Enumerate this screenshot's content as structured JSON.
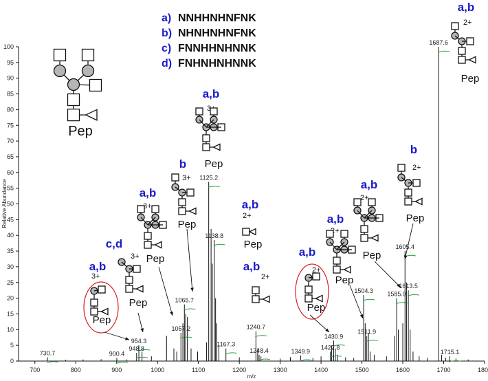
{
  "chart_data": {
    "type": "bar",
    "xlabel": "m/z",
    "ylabel": "Relative Abundance",
    "xlim": [
      660,
      1800
    ],
    "ylim": [
      0,
      100
    ],
    "xticks": [
      700,
      800,
      900,
      1000,
      1100,
      1200,
      1300,
      1400,
      1500,
      1600,
      1700,
      1800
    ],
    "yticks": [
      0,
      5,
      10,
      15,
      20,
      25,
      30,
      35,
      40,
      45,
      50,
      55,
      60,
      65,
      70,
      75,
      80,
      85,
      90,
      95,
      100
    ],
    "peaks": [
      {
        "mz": 730.7,
        "intensity": 1.2,
        "label": "730.7"
      },
      {
        "mz": 900.4,
        "intensity": 1.0,
        "label": "900.4"
      },
      {
        "mz": 948.8,
        "intensity": 2.6,
        "label": "948.8"
      },
      {
        "mz": 954.3,
        "intensity": 5.0,
        "label": "954.3"
      },
      {
        "mz": 1057.2,
        "intensity": 9.0,
        "label": "1057.2"
      },
      {
        "mz": 1065.7,
        "intensity": 18.0,
        "label": "1065.7"
      },
      {
        "mz": 1125.2,
        "intensity": 57.0,
        "label": "1125.2"
      },
      {
        "mz": 1138.8,
        "intensity": 38.5,
        "label": "1138.8"
      },
      {
        "mz": 1167.3,
        "intensity": 4.0,
        "label": "1167.3"
      },
      {
        "mz": 1240.7,
        "intensity": 9.5,
        "label": "1240.7"
      },
      {
        "mz": 1248.4,
        "intensity": 2.0,
        "label": "1248.4"
      },
      {
        "mz": 1349.9,
        "intensity": 1.8,
        "label": "1349.9"
      },
      {
        "mz": 1422.8,
        "intensity": 3.0,
        "label": "1422.8"
      },
      {
        "mz": 1430.9,
        "intensity": 6.5,
        "label": "1430.9"
      },
      {
        "mz": 1504.3,
        "intensity": 21.0,
        "label": "1504.3"
      },
      {
        "mz": 1511.9,
        "intensity": 8.0,
        "label": "1511.9"
      },
      {
        "mz": 1585.0,
        "intensity": 20.0,
        "label": "1585.0"
      },
      {
        "mz": 1605.4,
        "intensity": 35.0,
        "label": "1605.4"
      },
      {
        "mz": 1613.5,
        "intensity": 22.5,
        "label": "1613.5"
      },
      {
        "mz": 1687.6,
        "intensity": 100.0,
        "label": "1687.6"
      },
      {
        "mz": 1715.1,
        "intensity": 1.5,
        "label": "1715.1"
      }
    ],
    "minor_peaks": [
      {
        "mz": 775,
        "intensity": 0.4
      },
      {
        "mz": 818,
        "intensity": 0.5
      },
      {
        "mz": 862,
        "intensity": 0.6
      },
      {
        "mz": 925,
        "intensity": 0.5
      },
      {
        "mz": 962,
        "intensity": 3.0
      },
      {
        "mz": 985,
        "intensity": 1.5
      },
      {
        "mz": 1022,
        "intensity": 8.0
      },
      {
        "mz": 1040,
        "intensity": 4.0
      },
      {
        "mz": 1047,
        "intensity": 3.0
      },
      {
        "mz": 1062,
        "intensity": 12.0
      },
      {
        "mz": 1069,
        "intensity": 15.0
      },
      {
        "mz": 1073,
        "intensity": 14.0
      },
      {
        "mz": 1082,
        "intensity": 4.0
      },
      {
        "mz": 1098,
        "intensity": 3.0
      },
      {
        "mz": 1120,
        "intensity": 6.0
      },
      {
        "mz": 1131,
        "intensity": 42.0
      },
      {
        "mz": 1134,
        "intensity": 31.0
      },
      {
        "mz": 1142,
        "intensity": 20.0
      },
      {
        "mz": 1145,
        "intensity": 12.0
      },
      {
        "mz": 1150,
        "intensity": 5.0
      },
      {
        "mz": 1200,
        "intensity": 1.2
      },
      {
        "mz": 1245,
        "intensity": 4.0
      },
      {
        "mz": 1253,
        "intensity": 1.5
      },
      {
        "mz": 1300,
        "intensity": 0.8
      },
      {
        "mz": 1325,
        "intensity": 1.2
      },
      {
        "mz": 1380,
        "intensity": 1.0
      },
      {
        "mz": 1400,
        "intensity": 1.5
      },
      {
        "mz": 1426,
        "intensity": 5.0
      },
      {
        "mz": 1435,
        "intensity": 4.0
      },
      {
        "mz": 1440,
        "intensity": 2.0
      },
      {
        "mz": 1460,
        "intensity": 1.2
      },
      {
        "mz": 1480,
        "intensity": 1.0
      },
      {
        "mz": 1508,
        "intensity": 12.0
      },
      {
        "mz": 1516,
        "intensity": 9.0
      },
      {
        "mz": 1520,
        "intensity": 3.0
      },
      {
        "mz": 1530,
        "intensity": 2.0
      },
      {
        "mz": 1560,
        "intensity": 1.5
      },
      {
        "mz": 1580,
        "intensity": 8.0
      },
      {
        "mz": 1589,
        "intensity": 10.0
      },
      {
        "mz": 1600,
        "intensity": 12.0
      },
      {
        "mz": 1609,
        "intensity": 25.0
      },
      {
        "mz": 1618,
        "intensity": 10.0
      },
      {
        "mz": 1625,
        "intensity": 3.0
      },
      {
        "mz": 1640,
        "intensity": 1.5
      },
      {
        "mz": 1660,
        "intensity": 1.0
      },
      {
        "mz": 1695,
        "intensity": 2.0
      },
      {
        "mz": 1705,
        "intensity": 1.0
      },
      {
        "mz": 1730,
        "intensity": 0.8
      },
      {
        "mz": 1760,
        "intensity": 0.5
      }
    ],
    "legend": [
      {
        "key": "a)",
        "sequence": "NNHHNHNFNK"
      },
      {
        "key": "b)",
        "sequence": "NHNHNHNFNK"
      },
      {
        "key": "c)",
        "sequence": "FNNHHNHNNK"
      },
      {
        "key": "d)",
        "sequence": "FNHNHNHNNK"
      }
    ],
    "annotations": [
      {
        "label": "a,b",
        "charge": "3+",
        "peptide": "Pep"
      },
      {
        "label": "c,d",
        "charge": "3+",
        "peptide": "Pep"
      },
      {
        "label": "a,b",
        "charge": "3+",
        "peptide": "Pep"
      },
      {
        "label": "b",
        "charge": "3+",
        "peptide": "Pep"
      },
      {
        "label": "a,b",
        "charge": "3+",
        "peptide": "Pep"
      },
      {
        "label": "a,b",
        "charge": "2+",
        "peptide": "Pep"
      },
      {
        "label": "a,b",
        "charge": "2+",
        "peptide": ""
      },
      {
        "label": "a,b",
        "charge": "2+",
        "peptide": "Pep"
      },
      {
        "label": "a,b",
        "charge": "2+",
        "peptide": "Pep"
      },
      {
        "label": "a,b",
        "charge": "2+",
        "peptide": "Pep"
      },
      {
        "label": "b",
        "charge": "2+",
        "peptide": "Pep"
      },
      {
        "label": "a,b",
        "charge": "2+",
        "peptide": "Pep"
      }
    ],
    "main_glycan_peptide": "Pep",
    "colors": {
      "annotation": "#1a1acc",
      "highlight": "#d42020",
      "monoisotopic_marker": "#2aa03a",
      "galactose_fill": "#b5b5b5"
    }
  }
}
